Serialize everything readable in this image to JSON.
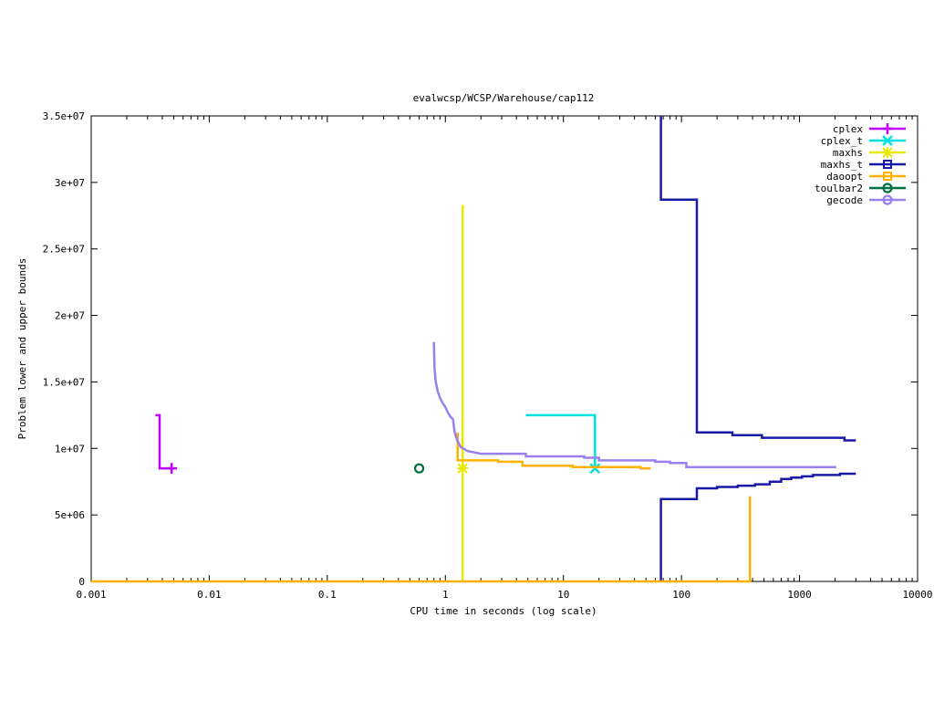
{
  "chart_data": {
    "type": "line",
    "title": "evalwcsp/WCSP/Warehouse/cap112",
    "xlabel": "CPU time in seconds (log scale)",
    "ylabel": "Problem lower and upper bounds",
    "xscale": "log",
    "xlim": [
      0.001,
      10000
    ],
    "ylim": [
      0,
      35000000
    ],
    "xticks": [
      {
        "v": 0.001,
        "label": "0.001"
      },
      {
        "v": 0.01,
        "label": "0.01"
      },
      {
        "v": 0.1,
        "label": "0.1"
      },
      {
        "v": 1,
        "label": "1"
      },
      {
        "v": 10,
        "label": "10"
      },
      {
        "v": 100,
        "label": "100"
      },
      {
        "v": 1000,
        "label": "1000"
      },
      {
        "v": 10000,
        "label": "10000"
      }
    ],
    "yticks": [
      {
        "v": 0,
        "label": "0"
      },
      {
        "v": 5000000,
        "label": "5e+06"
      },
      {
        "v": 10000000,
        "label": "1e+07"
      },
      {
        "v": 15000000,
        "label": "1.5e+07"
      },
      {
        "v": 20000000,
        "label": "2e+07"
      },
      {
        "v": 25000000,
        "label": "2.5e+07"
      },
      {
        "v": 30000000,
        "label": "3e+07"
      },
      {
        "v": 35000000,
        "label": "3.5e+07"
      }
    ],
    "legend_position": "top-right",
    "grid": false,
    "series": [
      {
        "name": "cplex",
        "color": "#c000ff",
        "marker": "plus",
        "lines": [
          [
            [
              0.0035,
              12500000
            ],
            [
              0.0038,
              12500000
            ],
            [
              0.0038,
              8500000
            ],
            [
              0.005,
              8500000
            ]
          ]
        ],
        "markers": [
          [
            0.0048,
            8500000
          ]
        ]
      },
      {
        "name": "cplex_t",
        "color": "#00e0e0",
        "marker": "x",
        "lines": [
          [
            [
              4.8,
              12500000
            ],
            [
              18.5,
              12500000
            ],
            [
              18.5,
              8500000
            ]
          ]
        ],
        "markers": [
          [
            18.5,
            8500000
          ]
        ]
      },
      {
        "name": "maxhs",
        "color": "#e8e800",
        "marker": "star",
        "lines": [
          [
            [
              1.4,
              28300000
            ],
            [
              1.4,
              0
            ]
          ]
        ],
        "markers": [
          [
            1.4,
            8500000
          ]
        ]
      },
      {
        "name": "maxhs_t",
        "color": "#1a1aaa",
        "marker": "square",
        "lines": [
          [
            [
              67,
              35000000
            ],
            [
              67,
              28700000
            ],
            [
              135,
              28700000
            ],
            [
              135,
              11200000
            ],
            [
              270,
              11200000
            ],
            [
              270,
              11000000
            ],
            [
              480,
              11000000
            ],
            [
              480,
              10800000
            ],
            [
              2400,
              10800000
            ],
            [
              2400,
              10600000
            ],
            [
              3000,
              10600000
            ]
          ],
          [
            [
              67,
              0
            ],
            [
              67,
              6200000
            ],
            [
              135,
              6200000
            ],
            [
              135,
              7000000
            ],
            [
              200,
              7000000
            ],
            [
              200,
              7100000
            ],
            [
              300,
              7100000
            ],
            [
              300,
              7200000
            ],
            [
              420,
              7200000
            ],
            [
              420,
              7300000
            ],
            [
              560,
              7300000
            ],
            [
              560,
              7500000
            ],
            [
              700,
              7500000
            ],
            [
              700,
              7700000
            ],
            [
              850,
              7700000
            ],
            [
              850,
              7800000
            ],
            [
              1050,
              7800000
            ],
            [
              1050,
              7900000
            ],
            [
              1300,
              7900000
            ],
            [
              1300,
              8000000
            ],
            [
              2200,
              8000000
            ],
            [
              2200,
              8100000
            ],
            [
              3000,
              8100000
            ]
          ]
        ],
        "markers": []
      },
      {
        "name": "daoopt",
        "color": "#ffb000",
        "marker": "square",
        "lines": [
          [
            [
              0.001,
              0
            ],
            [
              380,
              0
            ],
            [
              380,
              6400000
            ]
          ],
          [
            [
              1.27,
              11200000
            ],
            [
              1.27,
              9100000
            ],
            [
              2.8,
              9100000
            ],
            [
              2.8,
              9000000
            ],
            [
              4.5,
              9000000
            ],
            [
              4.5,
              8700000
            ],
            [
              12,
              8700000
            ],
            [
              12,
              8600000
            ],
            [
              45,
              8600000
            ],
            [
              45,
              8500000
            ],
            [
              55,
              8500000
            ]
          ]
        ],
        "markers": []
      },
      {
        "name": "toulbar2",
        "color": "#007040",
        "marker": "circle",
        "lines": [],
        "markers": [
          [
            0.6,
            8500000
          ]
        ]
      },
      {
        "name": "gecode",
        "color": "#9a80ee",
        "marker": "circle",
        "lines": [
          [
            [
              0.8,
              18000000
            ],
            [
              0.81,
              16000000
            ],
            [
              0.83,
              15000000
            ],
            [
              0.86,
              14300000
            ],
            [
              0.9,
              13800000
            ],
            [
              0.95,
              13400000
            ],
            [
              1.0,
              13100000
            ],
            [
              1.05,
              12700000
            ],
            [
              1.1,
              12400000
            ],
            [
              1.16,
              12200000
            ],
            [
              1.2,
              11200000
            ],
            [
              1.26,
              10600000
            ],
            [
              1.35,
              10100000
            ],
            [
              1.55,
              9800000
            ],
            [
              2.0,
              9600000
            ],
            [
              4.8,
              9600000
            ],
            [
              4.8,
              9400000
            ],
            [
              15,
              9400000
            ],
            [
              15,
              9300000
            ],
            [
              20,
              9300000
            ],
            [
              20,
              9100000
            ],
            [
              60,
              9100000
            ],
            [
              60,
              9000000
            ],
            [
              80,
              9000000
            ],
            [
              80,
              8900000
            ],
            [
              110,
              8900000
            ],
            [
              110,
              8600000
            ],
            [
              2000,
              8600000
            ],
            [
              2000,
              8500000
            ]
          ]
        ],
        "markers": []
      }
    ]
  }
}
